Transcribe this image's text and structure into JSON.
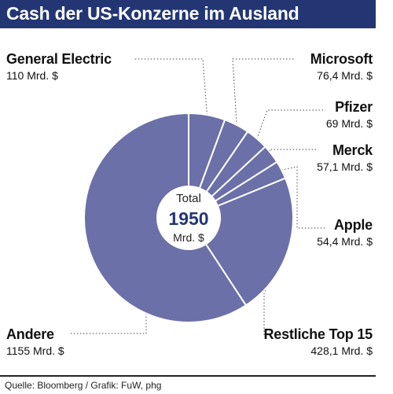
{
  "title": "Cash der US-Konzerne im Ausland",
  "center": {
    "label": "Total",
    "value": "1950",
    "unit": "Mrd. $"
  },
  "source": "Quelle: Bloomberg / Grafik: FuW, phg",
  "colors": {
    "title_bg": "#233673",
    "slice_fill": "#6b70a8",
    "center_value": "#233673"
  },
  "labels": [
    {
      "name": "General Electric",
      "value": "110 Mrd. $"
    },
    {
      "name": "Microsoft",
      "value": "76,4 Mrd. $"
    },
    {
      "name": "Pfizer",
      "value": "69 Mrd. $"
    },
    {
      "name": "Merck",
      "value": "57,1 Mrd. $"
    },
    {
      "name": "Apple",
      "value": "54,4 Mrd. $"
    },
    {
      "name": "Restliche Top 15",
      "value": "428,1 Mrd. $"
    },
    {
      "name": "Andere",
      "value": "1155 Mrd. $"
    }
  ],
  "chart_data": {
    "type": "pie",
    "title": "Cash der US-Konzerne im Ausland",
    "unit": "Mrd. $",
    "total": 1950,
    "categories": [
      "General Electric",
      "Microsoft",
      "Pfizer",
      "Merck",
      "Apple",
      "Restliche Top 15",
      "Andere"
    ],
    "values": [
      110,
      76.4,
      69,
      57.1,
      54.4,
      428.1,
      1155
    ],
    "donut": true
  }
}
